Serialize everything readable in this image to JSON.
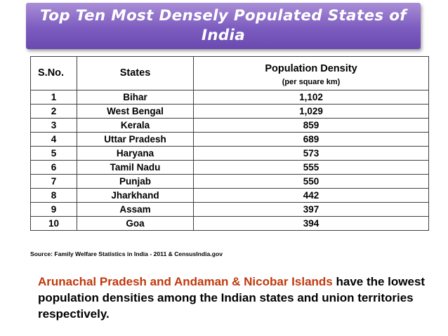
{
  "title": "Top Ten Most Densely Populated States of India",
  "table": {
    "headers": {
      "sno": "S.No.",
      "states": "States",
      "density": "Population Density",
      "density_unit": "(per square km)"
    },
    "rows": [
      {
        "sno": "1",
        "state": "Bihar",
        "density": "1,102"
      },
      {
        "sno": "2",
        "state": "West Bengal",
        "density": "1,029"
      },
      {
        "sno": "3",
        "state": "Kerala",
        "density": "859"
      },
      {
        "sno": "4",
        "state": "Uttar Pradesh",
        "density": "689"
      },
      {
        "sno": "5",
        "state": "Haryana",
        "density": "573"
      },
      {
        "sno": "6",
        "state": "Tamil Nadu",
        "density": "555"
      },
      {
        "sno": "7",
        "state": "Punjab",
        "density": "550"
      },
      {
        "sno": "8",
        "state": "Jharkhand",
        "density": "442"
      },
      {
        "sno": "9",
        "state": "Assam",
        "density": "397"
      },
      {
        "sno": "10",
        "state": "Goa",
        "density": "394"
      }
    ]
  },
  "source": "Source: Family Welfare Statistics in India - 2011 & CensusIndia.gov",
  "note": {
    "highlight": "Arunachal Pradesh and Andaman & Nicobar Islands",
    "rest": " have the lowest population densities among the Indian states and union territories respectively."
  },
  "colors": {
    "title_bg": "#7c5cbf",
    "title_text": "#ffffff",
    "highlight": "#c0380c"
  }
}
